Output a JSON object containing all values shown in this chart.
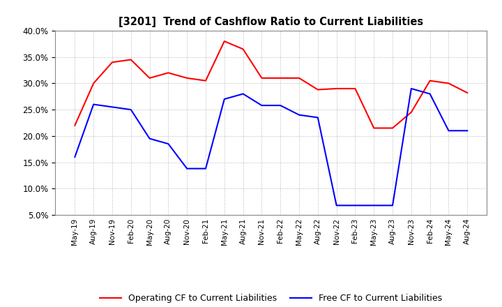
{
  "title": "[3201]  Trend of Cashflow Ratio to Current Liabilities",
  "x_labels": [
    "May-19",
    "Aug-19",
    "Nov-19",
    "Feb-20",
    "May-20",
    "Aug-20",
    "Nov-20",
    "Feb-21",
    "May-21",
    "Aug-21",
    "Nov-21",
    "Feb-22",
    "May-22",
    "Aug-22",
    "Nov-22",
    "Feb-23",
    "May-23",
    "Aug-23",
    "Nov-23",
    "Feb-24",
    "May-24",
    "Aug-24"
  ],
  "operating_cf": [
    0.22,
    0.3,
    0.34,
    0.345,
    0.31,
    0.32,
    0.31,
    0.305,
    0.38,
    0.365,
    0.31,
    0.31,
    0.31,
    0.288,
    0.29,
    0.29,
    0.215,
    0.215,
    0.245,
    0.305,
    0.3,
    0.282
  ],
  "free_cf": [
    0.16,
    0.26,
    0.255,
    0.25,
    0.195,
    0.185,
    0.138,
    0.138,
    0.27,
    0.28,
    0.258,
    0.258,
    0.24,
    0.235,
    0.068,
    0.068,
    0.068,
    0.068,
    0.29,
    0.28,
    0.21,
    0.21
  ],
  "operating_cf_color": "#FF0000",
  "free_cf_color": "#0000FF",
  "ylim": [
    0.05,
    0.4
  ],
  "yticks": [
    0.05,
    0.1,
    0.15,
    0.2,
    0.25,
    0.3,
    0.35,
    0.4
  ],
  "legend_labels": [
    "Operating CF to Current Liabilities",
    "Free CF to Current Liabilities"
  ],
  "background_color": "#FFFFFF",
  "grid_color": "#AAAAAA"
}
